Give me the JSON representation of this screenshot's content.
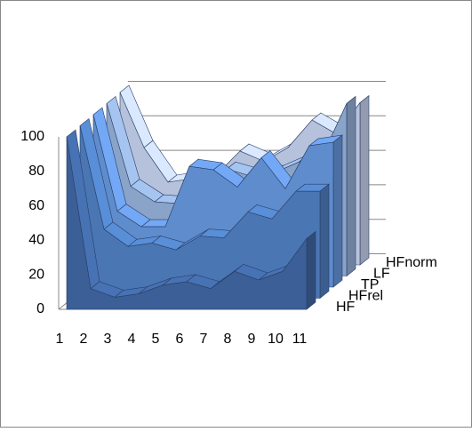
{
  "chart_data": {
    "type": "area",
    "categories": [
      "1",
      "2",
      "3",
      "4",
      "5",
      "6",
      "7",
      "8",
      "9",
      "10",
      "11"
    ],
    "series": [
      {
        "name": "HF",
        "color": "#3b5f96",
        "values": [
          100,
          12,
          7,
          9,
          14,
          16,
          12,
          22,
          17,
          22,
          41
        ]
      },
      {
        "name": "HFrel",
        "color": "#4a76b4",
        "values": [
          100,
          40,
          30,
          32,
          28,
          36,
          35,
          50,
          46,
          62,
          62
        ]
      },
      {
        "name": "TP",
        "color": "#5f8ccc",
        "values": [
          100,
          44,
          35,
          35,
          70,
          68,
          58,
          75,
          57,
          82,
          84
        ]
      },
      {
        "name": "LF",
        "color": "#8aa3c8",
        "values": [
          100,
          52,
          43,
          42,
          44,
          62,
          58,
          60,
          66,
          70,
          100
        ]
      },
      {
        "name": "HFnorm",
        "color": "#b6c2dc",
        "values": [
          100,
          68,
          48,
          50,
          52,
          66,
          60,
          68,
          84,
          76,
          94
        ]
      }
    ],
    "ylim": [
      0,
      100
    ],
    "yticks": [
      0,
      20,
      40,
      60,
      80,
      100
    ],
    "grid": true
  }
}
